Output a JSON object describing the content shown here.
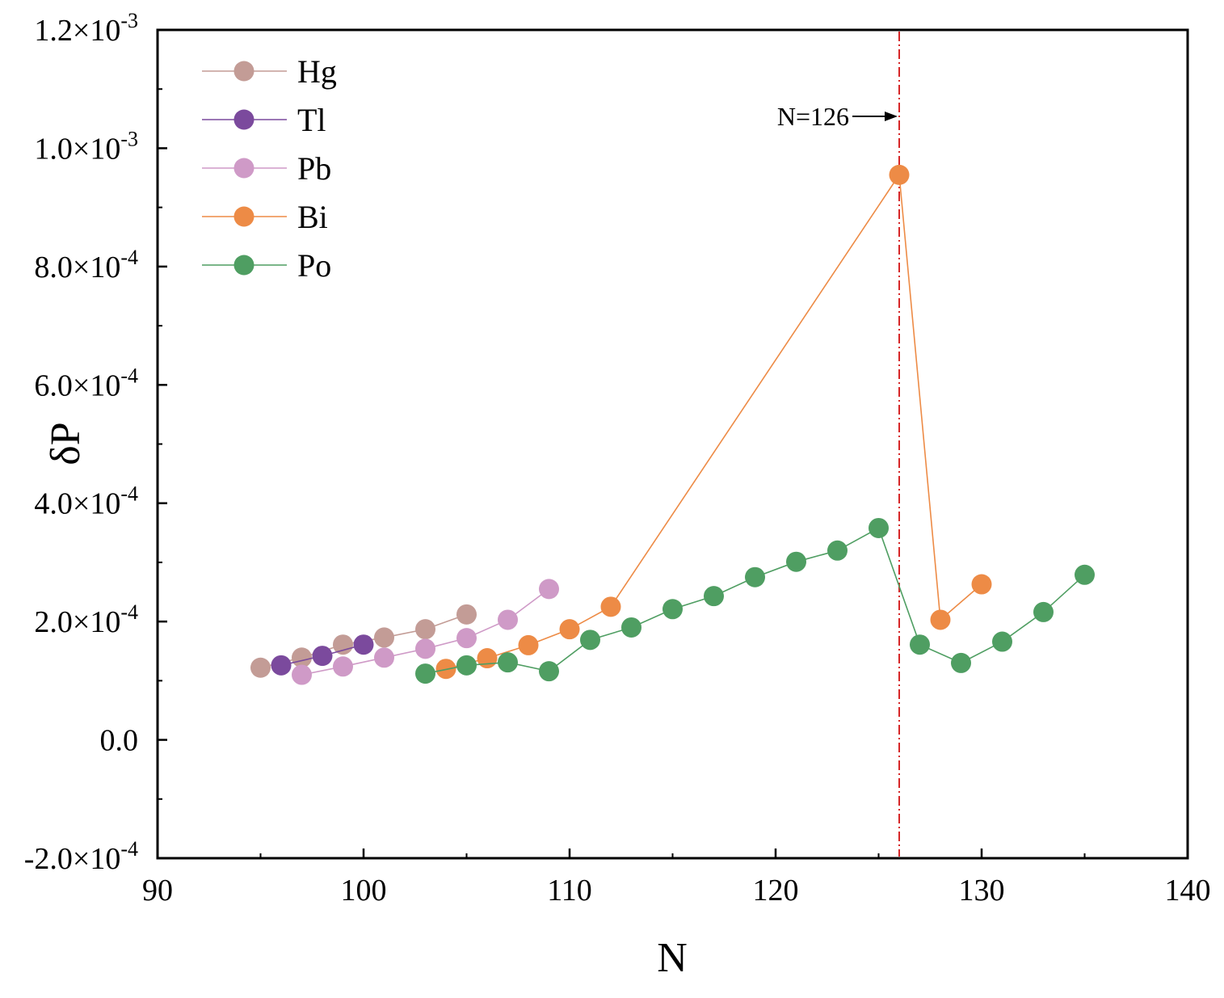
{
  "chart_data": {
    "type": "scatter",
    "xlabel": "N",
    "ylabel": "δP",
    "xlim": [
      90,
      140
    ],
    "ylim": [
      -0.0002,
      0.0012
    ],
    "x_ticks": [
      {
        "value": 90,
        "label": "90"
      },
      {
        "value": 100,
        "label": "100"
      },
      {
        "value": 110,
        "label": "110"
      },
      {
        "value": 120,
        "label": "120"
      },
      {
        "value": 130,
        "label": "130"
      },
      {
        "value": 140,
        "label": "140"
      }
    ],
    "y_ticks": [
      {
        "value": -0.0002,
        "mantissa": "-2.0×10",
        "exp": "-4"
      },
      {
        "value": 0,
        "mantissa": "0.0",
        "exp": ""
      },
      {
        "value": 0.0002,
        "mantissa": "2.0×10",
        "exp": "-4"
      },
      {
        "value": 0.0004,
        "mantissa": "4.0×10",
        "exp": "-4"
      },
      {
        "value": 0.0006,
        "mantissa": "6.0×10",
        "exp": "-4"
      },
      {
        "value": 0.0008,
        "mantissa": "8.0×10",
        "exp": "-4"
      },
      {
        "value": 0.001,
        "mantissa": "1.0×10",
        "exp": "-3"
      },
      {
        "value": 0.0012,
        "mantissa": "1.2×10",
        "exp": "-3"
      }
    ],
    "legend_position": "top-left",
    "series": [
      {
        "name": "Hg",
        "color": "#c39c96",
        "x": [
          95,
          97,
          99,
          101,
          103,
          105
        ],
        "y": [
          0.000122,
          0.000139,
          0.000161,
          0.000173,
          0.000187,
          0.000212
        ]
      },
      {
        "name": "Tl",
        "color": "#7b4a9d",
        "x": [
          96,
          98,
          100
        ],
        "y": [
          0.000126,
          0.000142,
          0.000161
        ]
      },
      {
        "name": "Pb",
        "color": "#cf9ac7",
        "x": [
          97,
          99,
          101,
          103,
          105,
          107,
          109
        ],
        "y": [
          0.00011,
          0.000124,
          0.000139,
          0.000154,
          0.000172,
          0.000203,
          0.000255
        ]
      },
      {
        "name": "Bi",
        "color": "#ed8b46",
        "x": [
          104,
          106,
          108,
          110,
          112,
          126,
          128,
          130
        ],
        "y": [
          0.00012,
          0.000138,
          0.00016,
          0.000187,
          0.000225,
          0.000955,
          0.000203,
          0.000263
        ]
      },
      {
        "name": "Po",
        "color": "#4f9e62",
        "x": [
          103,
          105,
          107,
          109,
          111,
          113,
          115,
          117,
          119,
          121,
          123,
          125,
          127,
          129,
          131,
          133,
          135
        ],
        "y": [
          0.000112,
          0.000126,
          0.000131,
          0.000116,
          0.000169,
          0.00019,
          0.000221,
          0.000243,
          0.000275,
          0.000301,
          0.00032,
          0.000358,
          0.000161,
          0.00013,
          0.000166,
          0.000216,
          0.000279
        ]
      }
    ],
    "annotations": [
      {
        "text": "N=126",
        "x": 126,
        "style": "vertical dash-dot line with arrow",
        "color": "#d62728"
      }
    ]
  }
}
